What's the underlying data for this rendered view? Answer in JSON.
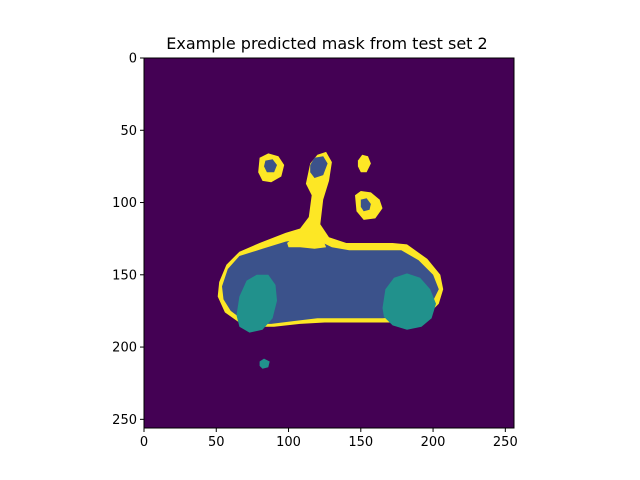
{
  "chart_data": {
    "type": "heatmap",
    "title": "Example predicted mask from test set 2",
    "xlabel": "",
    "ylabel": "",
    "xlim": [
      0,
      256
    ],
    "ylim": [
      256,
      0
    ],
    "x_ticks": [
      0,
      50,
      100,
      150,
      200,
      250
    ],
    "y_ticks": [
      0,
      50,
      100,
      150,
      200,
      250
    ],
    "grid": false,
    "colormap": "viridis",
    "class_colors": {
      "background": "#440154",
      "body": "#3b528b",
      "wheels": "#21918c",
      "outline": "#fde725"
    },
    "regions": [
      {
        "name": "car-body-outline",
        "class": "outline",
        "points": [
          [
            52,
            155
          ],
          [
            57,
            143
          ],
          [
            66,
            134
          ],
          [
            80,
            128
          ],
          [
            98,
            121
          ],
          [
            108,
            118
          ],
          [
            114,
            110
          ],
          [
            116,
            95
          ],
          [
            112,
            87
          ],
          [
            115,
            73
          ],
          [
            120,
            67
          ],
          [
            126,
            65
          ],
          [
            130,
            72
          ],
          [
            128,
            85
          ],
          [
            124,
            98
          ],
          [
            122,
            115
          ],
          [
            128,
            124
          ],
          [
            140,
            128
          ],
          [
            158,
            128
          ],
          [
            172,
            128
          ],
          [
            182,
            129
          ],
          [
            196,
            139
          ],
          [
            205,
            150
          ],
          [
            207,
            160
          ],
          [
            204,
            170
          ],
          [
            198,
            176
          ],
          [
            185,
            181
          ],
          [
            170,
            183
          ],
          [
            155,
            183
          ],
          [
            140,
            183
          ],
          [
            125,
            183
          ],
          [
            108,
            184
          ],
          [
            90,
            186
          ],
          [
            70,
            186
          ],
          [
            56,
            176
          ],
          [
            51,
            165
          ]
        ]
      },
      {
        "name": "car-body",
        "class": "body",
        "points": [
          [
            54,
            158
          ],
          [
            58,
            146
          ],
          [
            66,
            137
          ],
          [
            82,
            132
          ],
          [
            98,
            127
          ],
          [
            110,
            125
          ],
          [
            120,
            126
          ],
          [
            130,
            131
          ],
          [
            142,
            133
          ],
          [
            160,
            133
          ],
          [
            178,
            133
          ],
          [
            190,
            140
          ],
          [
            200,
            150
          ],
          [
            204,
            160
          ],
          [
            200,
            168
          ],
          [
            192,
            175
          ],
          [
            180,
            179
          ],
          [
            165,
            180
          ],
          [
            150,
            180
          ],
          [
            135,
            180
          ],
          [
            120,
            180
          ],
          [
            104,
            182
          ],
          [
            88,
            184
          ],
          [
            72,
            184
          ],
          [
            60,
            175
          ],
          [
            55,
            167
          ]
        ]
      },
      {
        "name": "window-outline",
        "class": "outline",
        "points": [
          [
            99,
            128
          ],
          [
            106,
            122
          ],
          [
            114,
            120
          ],
          [
            120,
            122
          ],
          [
            124,
            126
          ],
          [
            126,
            131
          ],
          [
            118,
            132
          ],
          [
            108,
            131
          ],
          [
            100,
            131
          ]
        ]
      },
      {
        "name": "left-wheel",
        "class": "wheels",
        "points": [
          [
            64,
            178
          ],
          [
            66,
            165
          ],
          [
            71,
            154
          ],
          [
            78,
            150
          ],
          [
            86,
            150
          ],
          [
            91,
            157
          ],
          [
            92,
            168
          ],
          [
            89,
            180
          ],
          [
            82,
            188
          ],
          [
            73,
            190
          ],
          [
            66,
            186
          ]
        ]
      },
      {
        "name": "right-wheel",
        "class": "wheels",
        "points": [
          [
            165,
            173
          ],
          [
            167,
            160
          ],
          [
            173,
            152
          ],
          [
            182,
            149
          ],
          [
            191,
            152
          ],
          [
            198,
            160
          ],
          [
            202,
            170
          ],
          [
            199,
            180
          ],
          [
            192,
            186
          ],
          [
            182,
            188
          ],
          [
            172,
            185
          ],
          [
            166,
            179
          ]
        ]
      },
      {
        "name": "blob-left-outline",
        "class": "outline",
        "points": [
          [
            80,
            69
          ],
          [
            86,
            66
          ],
          [
            93,
            68
          ],
          [
            97,
            74
          ],
          [
            95,
            82
          ],
          [
            88,
            86
          ],
          [
            82,
            85
          ],
          [
            79,
            79
          ]
        ]
      },
      {
        "name": "blob-left-inner",
        "class": "body",
        "points": [
          [
            84,
            71
          ],
          [
            89,
            70
          ],
          [
            92,
            74
          ],
          [
            90,
            79
          ],
          [
            85,
            79
          ],
          [
            83,
            75
          ]
        ]
      },
      {
        "name": "blob-middle-inner",
        "class": "body",
        "points": [
          [
            115,
            74
          ],
          [
            118,
            69
          ],
          [
            124,
            68
          ],
          [
            127,
            73
          ],
          [
            124,
            81
          ],
          [
            118,
            83
          ],
          [
            115,
            79
          ]
        ]
      },
      {
        "name": "blob-right-top",
        "class": "outline",
        "points": [
          [
            148,
            71
          ],
          [
            151,
            67
          ],
          [
            155,
            68
          ],
          [
            157,
            73
          ],
          [
            154,
            79
          ],
          [
            150,
            79
          ],
          [
            148,
            75
          ]
        ]
      },
      {
        "name": "blob-right-lower-outline",
        "class": "outline",
        "points": [
          [
            146,
            95
          ],
          [
            150,
            92
          ],
          [
            157,
            93
          ],
          [
            163,
            98
          ],
          [
            165,
            104
          ],
          [
            160,
            111
          ],
          [
            152,
            112
          ],
          [
            147,
            106
          ]
        ]
      },
      {
        "name": "blob-right-lower-inner",
        "class": "body",
        "points": [
          [
            150,
            98
          ],
          [
            154,
            97
          ],
          [
            157,
            101
          ],
          [
            156,
            105
          ],
          [
            152,
            106
          ],
          [
            150,
            103
          ]
        ]
      },
      {
        "name": "speck",
        "class": "wheels",
        "points": [
          [
            80,
            210
          ],
          [
            83,
            208
          ],
          [
            87,
            210
          ],
          [
            86,
            214
          ],
          [
            82,
            215
          ],
          [
            80,
            213
          ]
        ]
      }
    ]
  }
}
